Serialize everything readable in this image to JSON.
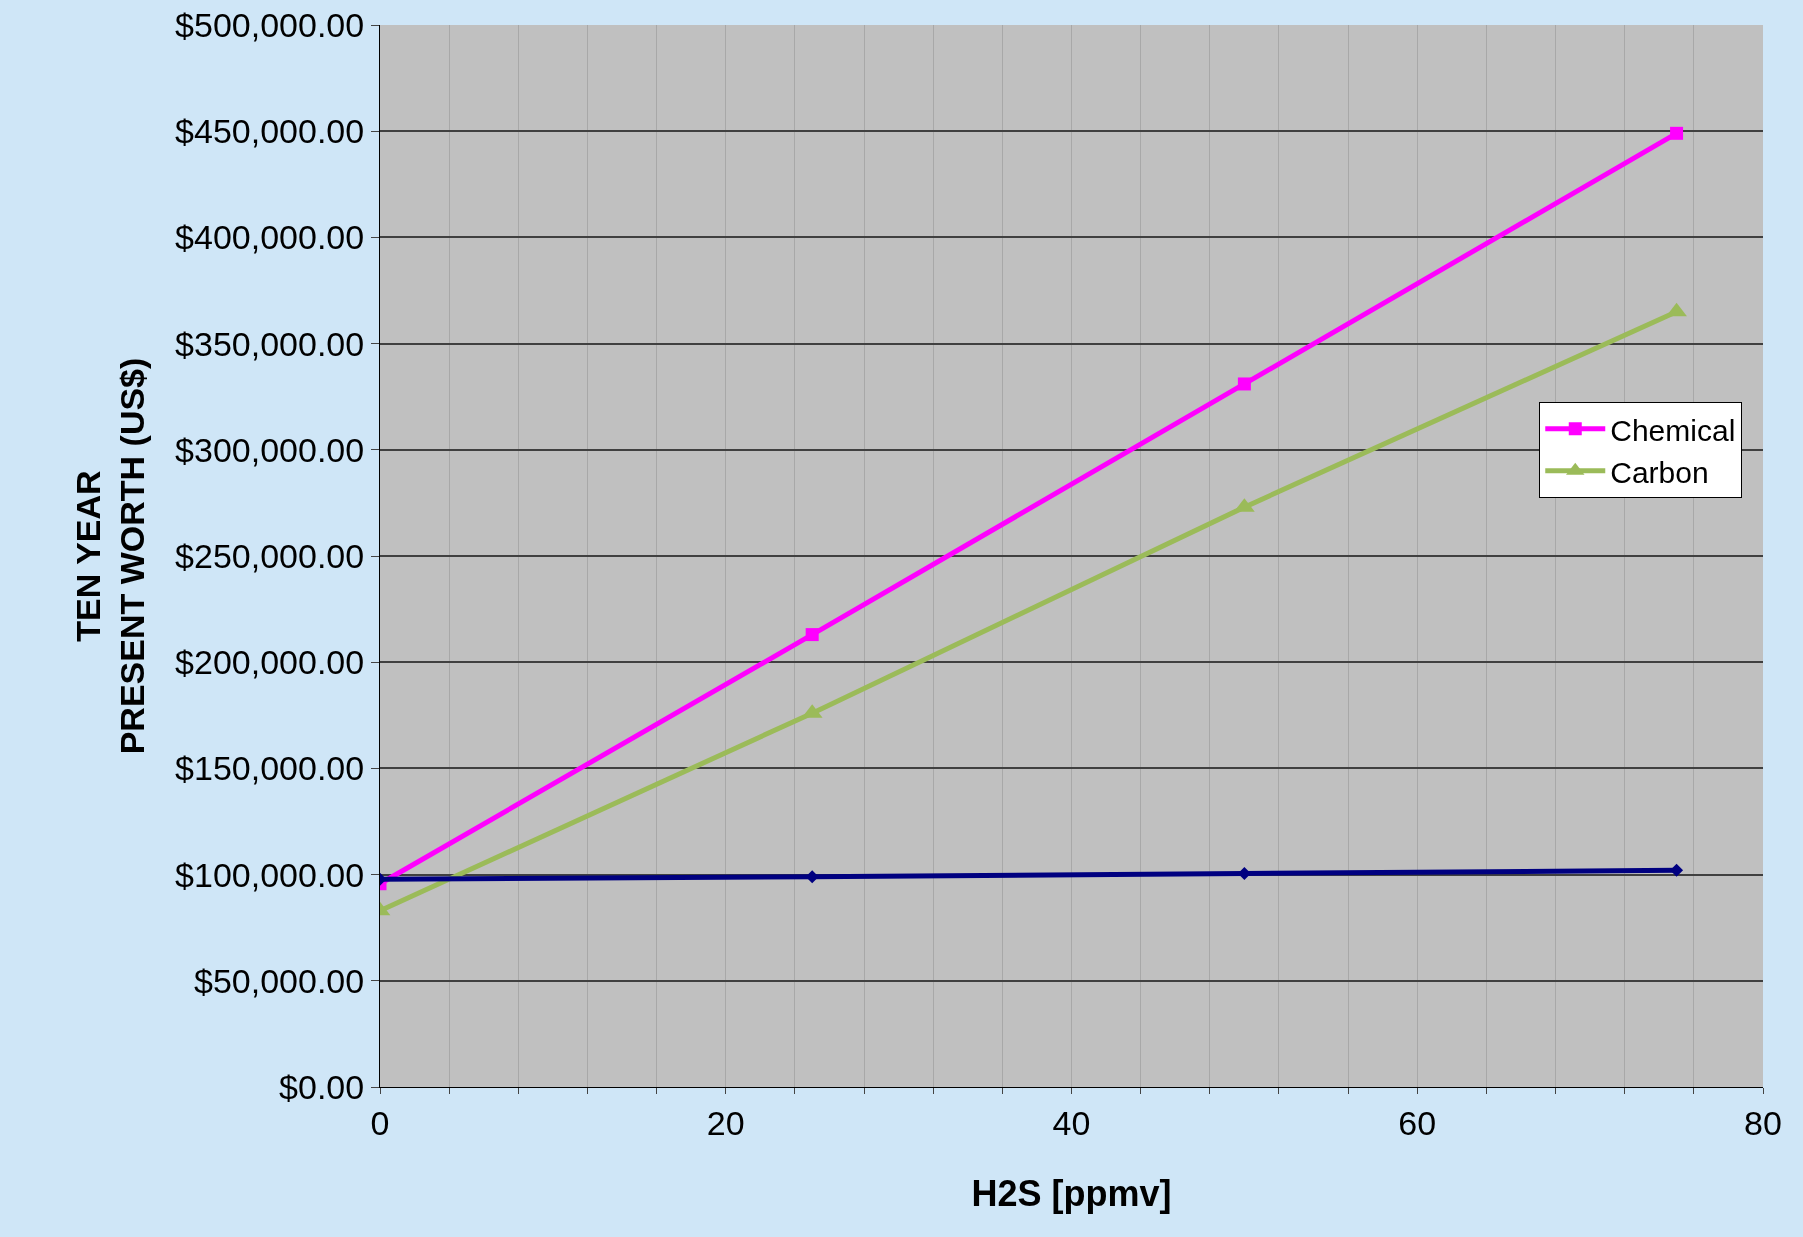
{
  "chart_data": {
    "type": "line",
    "xlabel": "H2S [ppmv]",
    "ylabel": "TEN YEAR\nPRESENT WORTH (US$)",
    "x": [
      0,
      25,
      50,
      75
    ],
    "series": [
      {
        "color": "#000080",
        "marker": "diamond",
        "values": [
          97800,
          99000,
          100500,
          102000
        ]
      },
      {
        "name": "Chemical",
        "color": "#ff00ff",
        "marker": "square",
        "values": [
          95700,
          213000,
          331000,
          449000
        ]
      },
      {
        "name": "Carbon",
        "color": "#9bbb59",
        "marker": "triangle",
        "values": [
          83000,
          176000,
          273000,
          365000
        ]
      }
    ],
    "xlim": [
      0,
      80
    ],
    "xticks": [
      0,
      {
        "value": 4,
        "label": null
      },
      {
        "value": 8,
        "label": null
      },
      {
        "value": 12,
        "label": null
      },
      {
        "value": 16,
        "label": null
      },
      20,
      {
        "value": 24,
        "label": null
      },
      {
        "value": 28,
        "label": null
      },
      {
        "value": 32,
        "label": null
      },
      {
        "value": 36,
        "label": null
      },
      40,
      {
        "value": 44,
        "label": null
      },
      {
        "value": 48,
        "label": null
      },
      {
        "value": 52,
        "label": null
      },
      {
        "value": 56,
        "label": null
      },
      60,
      {
        "value": 64,
        "label": null
      },
      {
        "value": 68,
        "label": null
      },
      {
        "value": 72,
        "label": null
      },
      {
        "value": 76,
        "label": null
      },
      80
    ],
    "ylim": [
      0,
      500000
    ],
    "yticks": [
      {
        "value": 0,
        "label": "$0.00"
      },
      {
        "value": 50000,
        "label": "$50,000.00"
      },
      {
        "value": 100000,
        "label": "$100,000.00"
      },
      {
        "value": 150000,
        "label": "$150,000.00"
      },
      {
        "value": 200000,
        "label": "$200,000.00"
      },
      {
        "value": 250000,
        "label": "$250,000.00"
      },
      {
        "value": 300000,
        "label": "$300,000.00"
      },
      {
        "value": 350000,
        "label": "$350,000.00"
      },
      {
        "value": 400000,
        "label": "$400,000.00"
      },
      {
        "value": 450000,
        "label": "$450,000.00"
      },
      {
        "value": 500000,
        "label": "$500,000.00"
      }
    ],
    "grid": true,
    "legend": "right",
    "line_style": "solid"
  }
}
